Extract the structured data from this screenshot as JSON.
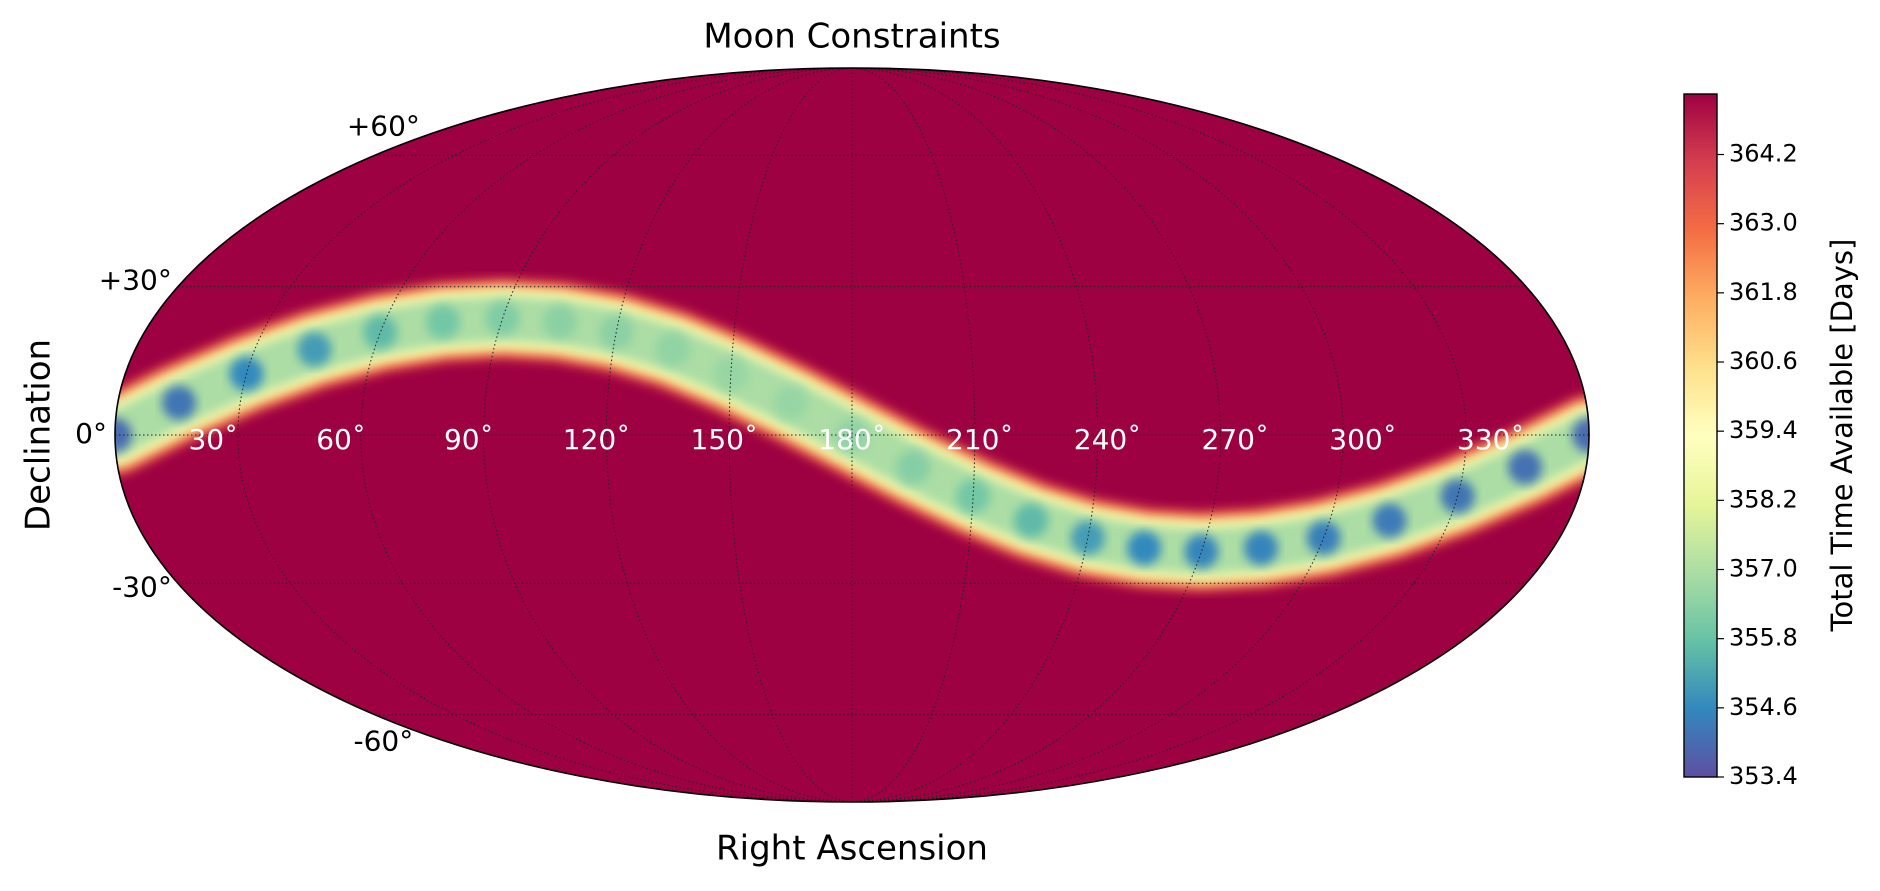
{
  "chart_data": {
    "type": "mollweide",
    "title": "Moon Constraints",
    "xlabel": "Right Ascension",
    "ylabel": "Declination",
    "x": [
      0,
      15,
      30,
      45,
      60,
      75,
      90,
      105,
      120,
      135,
      150,
      165,
      180,
      195,
      210,
      225,
      240,
      255,
      270,
      285,
      300,
      315,
      330,
      345,
      360
    ],
    "dec": [
      0,
      6.4,
      12.2,
      17.1,
      20.6,
      22.7,
      23.4,
      22.7,
      20.6,
      17.1,
      12.2,
      6.4,
      0,
      -6.4,
      -12.2,
      -17.1,
      -20.6,
      -22.7,
      -23.4,
      -22.7,
      -20.6,
      -17.1,
      -12.2,
      -6.4,
      0
    ],
    "values": [
      354.0,
      354.2,
      354.6,
      355.0,
      355.6,
      356.0,
      356.2,
      356.4,
      356.4,
      356.5,
      356.6,
      356.6,
      356.5,
      356.3,
      356.0,
      355.6,
      355.0,
      354.6,
      354.5,
      354.5,
      354.4,
      354.3,
      354.2,
      354.1,
      354.0
    ],
    "xlim": [
      0,
      360
    ],
    "ylim": [
      -90,
      90
    ],
    "xticks": [
      {
        "value": 30,
        "label": "30˚"
      },
      {
        "value": 60,
        "label": "60˚"
      },
      {
        "value": 90,
        "label": "90˚"
      },
      {
        "value": 120,
        "label": "120˚"
      },
      {
        "value": 150,
        "label": "150˚"
      },
      {
        "value": 180,
        "label": "180˚"
      },
      {
        "value": 210,
        "label": "210˚"
      },
      {
        "value": 240,
        "label": "240˚"
      },
      {
        "value": 270,
        "label": "270˚"
      },
      {
        "value": 300,
        "label": "300˚"
      },
      {
        "value": 330,
        "label": "330˚"
      }
    ],
    "yticks": [
      {
        "value": -60,
        "label": "-60°"
      },
      {
        "value": -30,
        "label": "-30°"
      },
      {
        "value": 0,
        "label": "0°"
      },
      {
        "value": 30,
        "label": "+30°"
      },
      {
        "value": 60,
        "label": "+60°"
      }
    ],
    "grid": true,
    "colorbar": {
      "label": "Total Time Available [Days]",
      "colormap": "Spectral_r",
      "lim": [
        353.4,
        365.25
      ],
      "ticks": [
        353.4,
        354.6,
        355.8,
        {
          "value": 357,
          "label": "357.0"
        },
        358.2,
        359.4,
        360.6,
        361.8,
        {
          "value": 363,
          "label": "363.0"
        },
        364.2
      ]
    }
  }
}
